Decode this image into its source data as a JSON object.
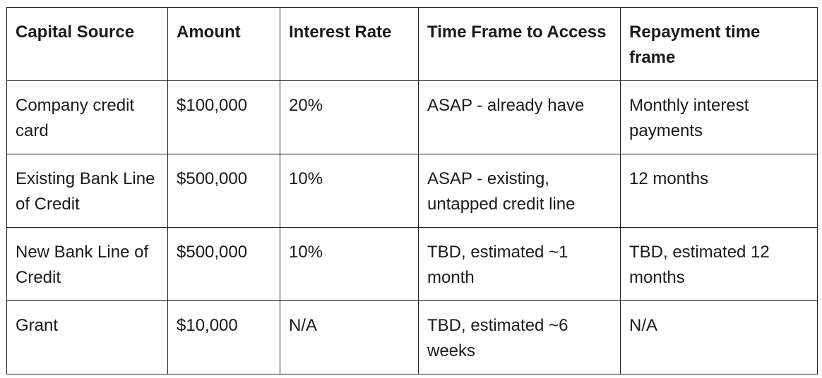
{
  "table": {
    "headers": [
      "Capital Source",
      "Amount",
      "Interest Rate",
      "Time Frame to Access",
      "Repayment time frame"
    ],
    "rows": [
      [
        "Company credit card",
        "$100,000",
        "20%",
        "ASAP - already have",
        "Monthly interest payments"
      ],
      [
        "Existing Bank Line of Credit",
        "$500,000",
        "10%",
        "ASAP - existing, untapped credit line",
        "12 months"
      ],
      [
        "New Bank Line of Credit",
        "$500,000",
        "10%",
        "TBD, estimated ~1 month",
        "TBD, estimated 12 months"
      ],
      [
        "Grant",
        "$10,000",
        "N/A",
        "TBD, estimated ~6 weeks",
        "N/A"
      ]
    ]
  }
}
